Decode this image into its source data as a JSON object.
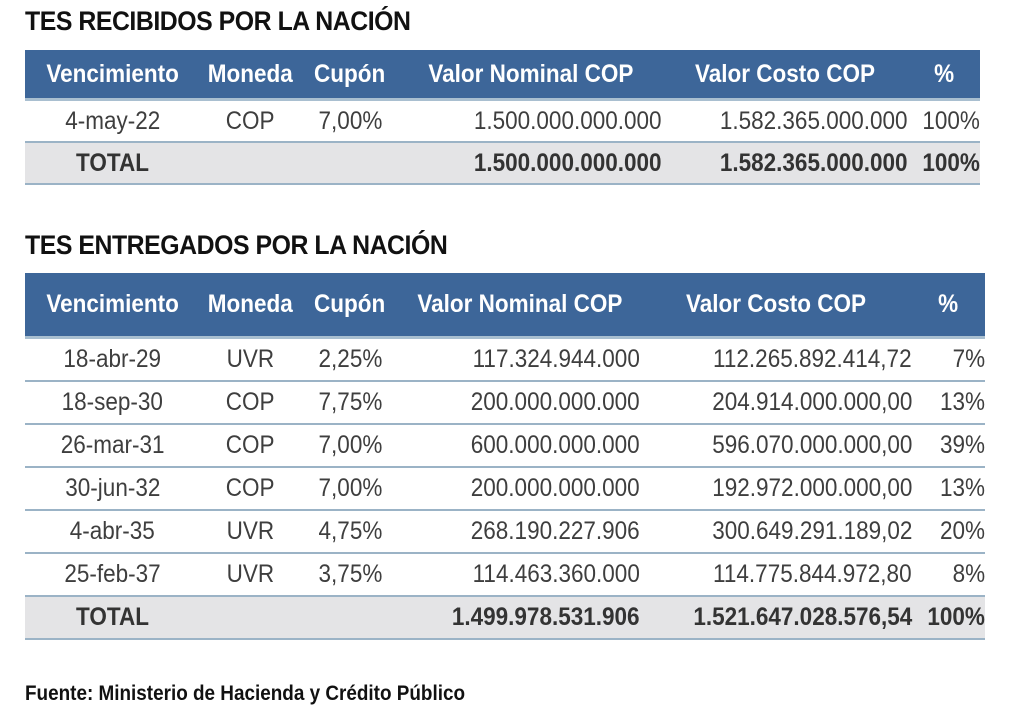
{
  "received": {
    "title": "TES RECIBIDOS POR LA NACIÓN",
    "headers": [
      "Vencimiento",
      "Moneda",
      "Cupón",
      "Valor Nominal COP",
      "Valor Costo COP",
      "%"
    ],
    "rows": [
      [
        "4-may-22",
        "COP",
        "7,00%",
        "1.500.000.000.000",
        "1.582.365.000.000",
        "100%"
      ]
    ],
    "total": [
      "TOTAL",
      "",
      "",
      "1.500.000.000.000",
      "1.582.365.000.000",
      "100%"
    ]
  },
  "delivered": {
    "title": "TES ENTREGADOS POR LA NACIÓN",
    "headers": [
      "Vencimiento",
      "Moneda",
      "Cupón",
      "Valor Nominal COP",
      "Valor Costo COP",
      "%"
    ],
    "rows": [
      [
        "18-abr-29",
        "UVR",
        "2,25%",
        "117.324.944.000",
        "112.265.892.414,72",
        "7%"
      ],
      [
        "18-sep-30",
        "COP",
        "7,75%",
        "200.000.000.000",
        "204.914.000.000,00",
        "13%"
      ],
      [
        "26-mar-31",
        "COP",
        "7,00%",
        "600.000.000.000",
        "596.070.000.000,00",
        "39%"
      ],
      [
        "30-jun-32",
        "COP",
        "7,00%",
        "200.000.000.000",
        "192.972.000.000,00",
        "13%"
      ],
      [
        "4-abr-35",
        "UVR",
        "4,75%",
        "268.190.227.906",
        "300.649.291.189,02",
        "20%"
      ],
      [
        "25-feb-37",
        "UVR",
        "3,75%",
        "114.463.360.000",
        "114.775.844.972,80",
        "8%"
      ]
    ],
    "total": [
      "TOTAL",
      "",
      "",
      "1.499.978.531.906",
      "1.521.647.028.576,54",
      "100%"
    ]
  },
  "source": "Fuente: Ministerio de Hacienda y Crédito Público",
  "colors": {
    "header_bg": "#3d6699",
    "total_bg": "#e4e4e6",
    "row_border": "#9bb3c6"
  }
}
